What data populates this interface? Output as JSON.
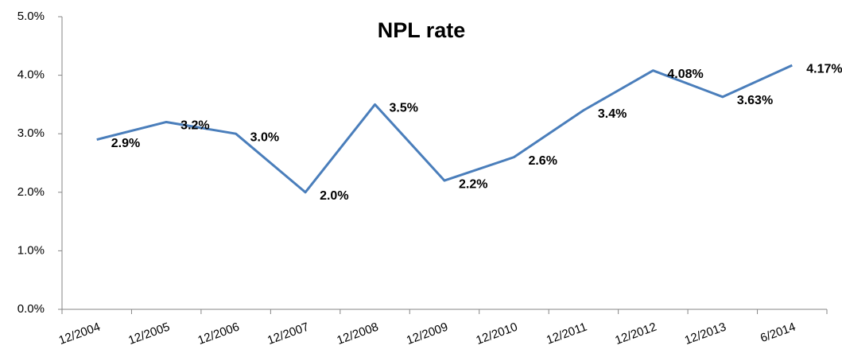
{
  "chart_data": {
    "type": "line",
    "title": "NPL rate",
    "categories": [
      "12/2004",
      "12/2005",
      "12/2006",
      "12/2007",
      "12/2008",
      "12/2009",
      "12/2010",
      "12/2011",
      "12/2012",
      "12/2013",
      "6/2014"
    ],
    "series": [
      {
        "name": "NPL rate",
        "color": "#4a7ebb",
        "values": [
          2.9,
          3.2,
          3.0,
          2.0,
          3.5,
          2.2,
          2.6,
          3.4,
          4.08,
          3.63,
          4.17
        ],
        "value_labels": [
          "2.9%",
          "3.2%",
          "3.0%",
          "2.0%",
          "3.5%",
          "2.2%",
          "2.6%",
          "3.4%",
          "4.08%",
          "3.63%",
          "4.17%"
        ]
      }
    ],
    "ylim": [
      0,
      5
    ],
    "yticks": [
      {
        "value": 0,
        "label": "0.0%"
      },
      {
        "value": 1,
        "label": "1.0%"
      },
      {
        "value": 2,
        "label": "2.0%"
      },
      {
        "value": 3,
        "label": "3.0%"
      },
      {
        "value": 4,
        "label": "4.0%"
      },
      {
        "value": 5,
        "label": "5.0%"
      }
    ],
    "grid": false
  }
}
